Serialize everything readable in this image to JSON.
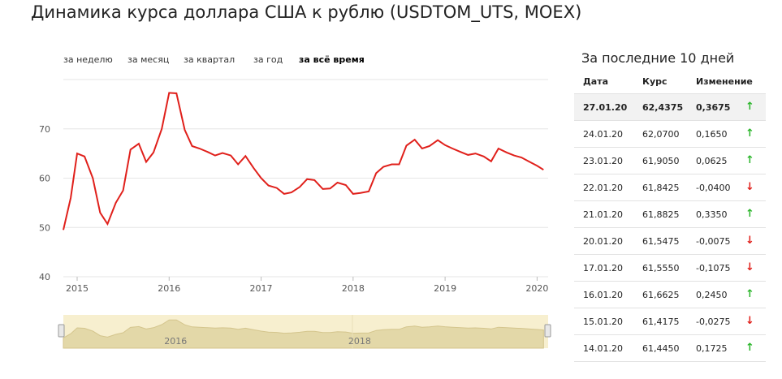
{
  "title": "Динамика курса доллара США к рублю (USDTOM_UTS, MOEX)",
  "periods": [
    {
      "label": "за неделю",
      "active": false
    },
    {
      "label": "за месяц",
      "active": false
    },
    {
      "label": "за квартал",
      "active": false
    },
    {
      "label": "за год",
      "active": false
    },
    {
      "label": "за всё время",
      "active": true
    }
  ],
  "colors": {
    "line": "#e0201b",
    "navigator_fill": "#f7efcf",
    "up": "#2ab52a",
    "down": "#e0201b"
  },
  "chart_data": {
    "type": "line",
    "title": "Динамика курса доллара США к рублю (USDTOM_UTS, MOEX)",
    "xlabel": "",
    "ylabel": "",
    "ylim": [
      40,
      80
    ],
    "yticks": [
      40,
      50,
      60,
      70
    ],
    "xticks": [
      "2015",
      "2016",
      "2017",
      "2018",
      "2019",
      "2020"
    ],
    "xlim": [
      2014.85,
      2020.12
    ],
    "navigator_labels": [
      "2016",
      "2018"
    ],
    "series": [
      {
        "name": "USDTOM_UTS",
        "x": [
          2014.85,
          2014.93,
          2015.0,
          2015.08,
          2015.17,
          2015.25,
          2015.33,
          2015.42,
          2015.5,
          2015.58,
          2015.67,
          2015.75,
          2015.83,
          2015.92,
          2016.0,
          2016.08,
          2016.17,
          2016.25,
          2016.33,
          2016.42,
          2016.5,
          2016.58,
          2016.67,
          2016.75,
          2016.83,
          2016.92,
          2017.0,
          2017.08,
          2017.17,
          2017.25,
          2017.33,
          2017.42,
          2017.5,
          2017.58,
          2017.67,
          2017.75,
          2017.83,
          2017.92,
          2018.0,
          2018.08,
          2018.17,
          2018.25,
          2018.33,
          2018.42,
          2018.5,
          2018.58,
          2018.67,
          2018.75,
          2018.83,
          2018.92,
          2019.0,
          2019.08,
          2019.17,
          2019.25,
          2019.33,
          2019.42,
          2019.5,
          2019.58,
          2019.67,
          2019.75,
          2019.83,
          2019.92,
          2020.0,
          2020.07
        ],
        "y": [
          49.5,
          56,
          65,
          64.4,
          60,
          53,
          50.7,
          55,
          57.5,
          65.8,
          67,
          63.3,
          65.2,
          70,
          77.3,
          77.2,
          69.8,
          66.5,
          66,
          65.3,
          64.6,
          65.1,
          64.6,
          62.8,
          64.5,
          62,
          60,
          58.5,
          58,
          56.8,
          57.1,
          58.2,
          59.8,
          59.6,
          57.8,
          57.9,
          59.1,
          58.6,
          56.8,
          57,
          57.3,
          61,
          62.3,
          62.8,
          62.8,
          66.6,
          67.8,
          66,
          66.5,
          67.7,
          66.7,
          66,
          65.3,
          64.7,
          65,
          64.4,
          63.4,
          66,
          65.2,
          64.6,
          64.2,
          63.3,
          62.5,
          61.7
        ]
      }
    ]
  },
  "table": {
    "title": "За последние 10 дней",
    "headers": {
      "date": "Дата",
      "rate": "Курс",
      "change": "Изменение"
    },
    "rows": [
      {
        "date": "27.01.20",
        "rate": "62,4375",
        "change": "0,3675",
        "dir": "up",
        "arrow": "↑"
      },
      {
        "date": "24.01.20",
        "rate": "62,0700",
        "change": "0,1650",
        "dir": "up",
        "arrow": "↑"
      },
      {
        "date": "23.01.20",
        "rate": "61,9050",
        "change": "0,0625",
        "dir": "up",
        "arrow": "↑"
      },
      {
        "date": "22.01.20",
        "rate": "61,8425",
        "change": "-0,0400",
        "dir": "down",
        "arrow": "↓"
      },
      {
        "date": "21.01.20",
        "rate": "61,8825",
        "change": "0,3350",
        "dir": "up",
        "arrow": "↑"
      },
      {
        "date": "20.01.20",
        "rate": "61,5475",
        "change": "-0,0075",
        "dir": "down",
        "arrow": "↓"
      },
      {
        "date": "17.01.20",
        "rate": "61,5550",
        "change": "-0,1075",
        "dir": "down",
        "arrow": "↓"
      },
      {
        "date": "16.01.20",
        "rate": "61,6625",
        "change": "0,2450",
        "dir": "up",
        "arrow": "↑"
      },
      {
        "date": "15.01.20",
        "rate": "61,4175",
        "change": "-0,0275",
        "dir": "down",
        "arrow": "↓"
      },
      {
        "date": "14.01.20",
        "rate": "61,4450",
        "change": "0,1725",
        "dir": "up",
        "arrow": "↑"
      }
    ]
  }
}
